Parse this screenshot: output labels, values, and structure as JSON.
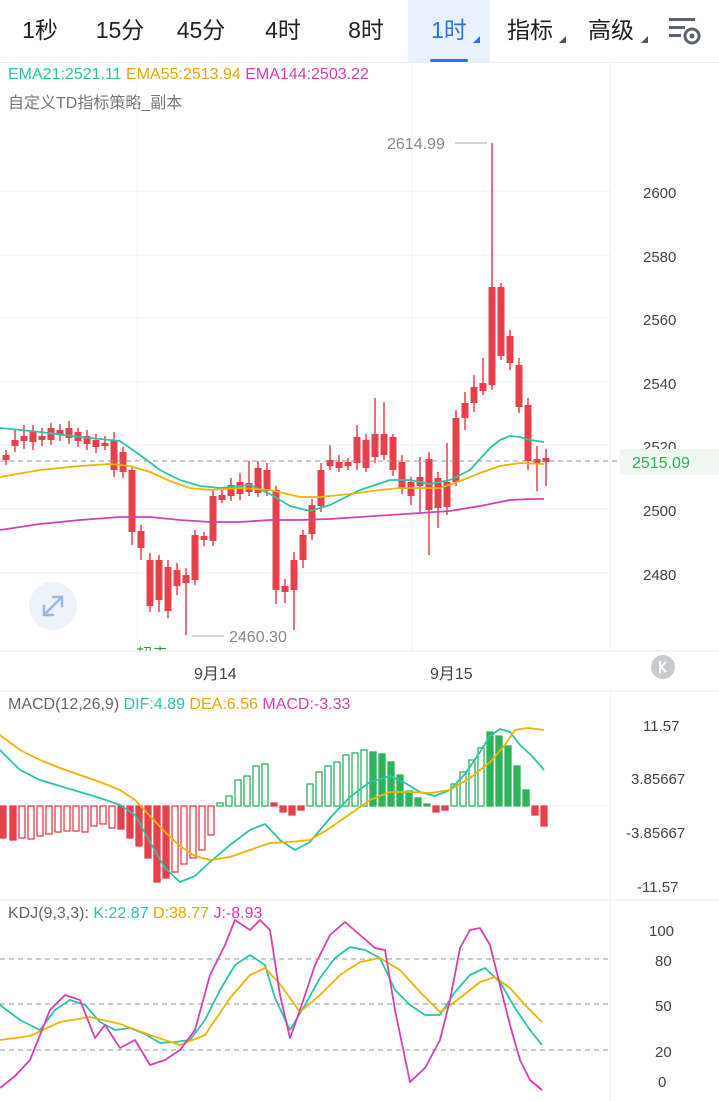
{
  "tabs": [
    {
      "label": "1秒",
      "active": false,
      "dropdown": false
    },
    {
      "label": "15分",
      "active": false,
      "dropdown": false
    },
    {
      "label": "45分",
      "active": false,
      "dropdown": false
    },
    {
      "label": "4时",
      "active": false,
      "dropdown": false
    },
    {
      "label": "8时",
      "active": false,
      "dropdown": false
    },
    {
      "label": "1时",
      "active": true,
      "dropdown": true
    },
    {
      "label": "指标",
      "active": false,
      "dropdown": true
    },
    {
      "label": "高级",
      "active": false,
      "dropdown": true
    }
  ],
  "settings_icon": "settings-icon",
  "expand_icon": "expand-icon",
  "collapse_icon": "collapse-icon",
  "main_chart": {
    "ema_legend": [
      {
        "text": "EMA21:2521.11",
        "color": "#2bc4a8"
      },
      {
        "text": "EMA55:2513.94",
        "color": "#f0b400"
      },
      {
        "text": "EMA144:2503.22",
        "color": "#d63fae"
      }
    ],
    "strategy_label": "自定义TD指标策略_副本",
    "y_ticks": [
      "2600",
      "2580",
      "2560",
      "2540",
      "2520",
      "2500",
      "2480"
    ],
    "current_price": "2515.09",
    "high_label": "2614.99",
    "low_label": "2460.30",
    "partial_label": "超卖",
    "x_labels": [
      "9月14",
      "9月15"
    ]
  },
  "macd": {
    "title": "MACD(12,26,9)",
    "dif": "DIF:4.89",
    "dea": "DEA:6.56",
    "macd": "MACD:-3.33",
    "y_ticks": [
      "11.57",
      "3.85667",
      "-3.85667",
      "-11.57"
    ]
  },
  "kdj": {
    "title": "KDJ(9,3,3):",
    "k": "K:22.87",
    "d": "D:38.77",
    "j": "J:-8.93",
    "y_ticks": [
      "100",
      "80",
      "50",
      "20",
      "0"
    ]
  },
  "colors": {
    "up": "#2eb35a",
    "down": "#e8404a",
    "ema21": "#2bc4a8",
    "ema55": "#f0b400",
    "ema144": "#d63fae",
    "accent": "#2a74e8"
  }
}
